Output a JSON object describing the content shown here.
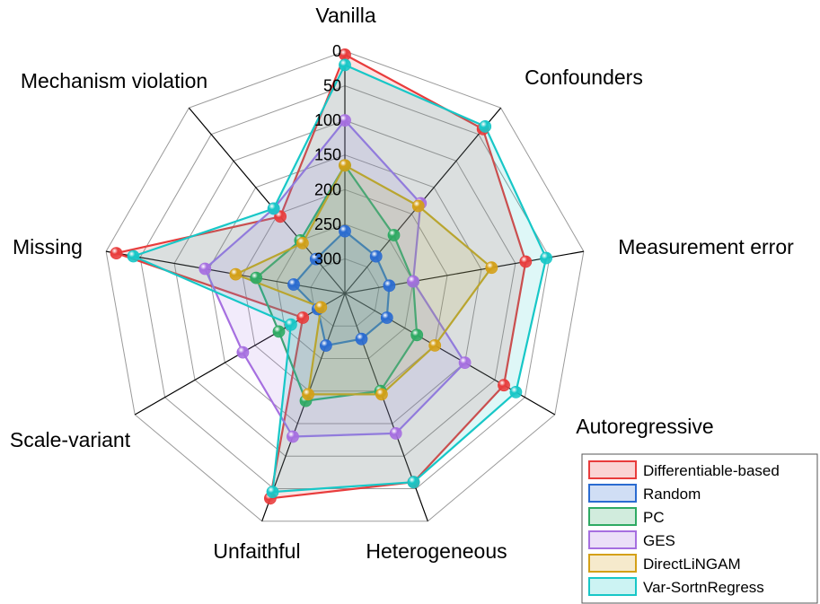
{
  "chart_data": {
    "type": "radar",
    "axes": [
      "Vanilla",
      "Confounders",
      "Measurement error",
      "Autoregressive",
      "Heterogeneous",
      "Unfaithful",
      "Scale-variant",
      "Missing",
      "Mechanism violation"
    ],
    "radial_ticks": [
      "0",
      "50",
      "100",
      "150",
      "200",
      "250",
      "300"
    ],
    "radial_range": [
      0,
      350
    ],
    "radial_direction": "inverted",
    "grid": true,
    "legend_position": "bottom-right",
    "series": [
      {
        "name": "Differentiable-based",
        "color": "#e83c3c",
        "values": [
          5,
          40,
          85,
          85,
          60,
          35,
          280,
          15,
          205
        ]
      },
      {
        "name": "Random",
        "color": "#2a6bd1",
        "values": [
          260,
          280,
          285,
          280,
          280,
          270,
          305,
          275,
          285
        ]
      },
      {
        "name": "PC",
        "color": "#2eaa63",
        "values": [
          165,
          240,
          250,
          230,
          200,
          185,
          240,
          220,
          250
        ]
      },
      {
        "name": "GES",
        "color": "#a66fe0",
        "values": [
          100,
          180,
          250,
          150,
          135,
          130,
          180,
          145,
          190
        ]
      },
      {
        "name": "DirectLiNGAM",
        "color": "#d4a017",
        "values": [
          165,
          185,
          135,
          200,
          195,
          195,
          310,
          190,
          255
        ]
      },
      {
        "name": "Var-SortnRegress",
        "color": "#17c7c7",
        "values": [
          20,
          35,
          55,
          65,
          60,
          45,
          260,
          40,
          190
        ]
      }
    ]
  }
}
